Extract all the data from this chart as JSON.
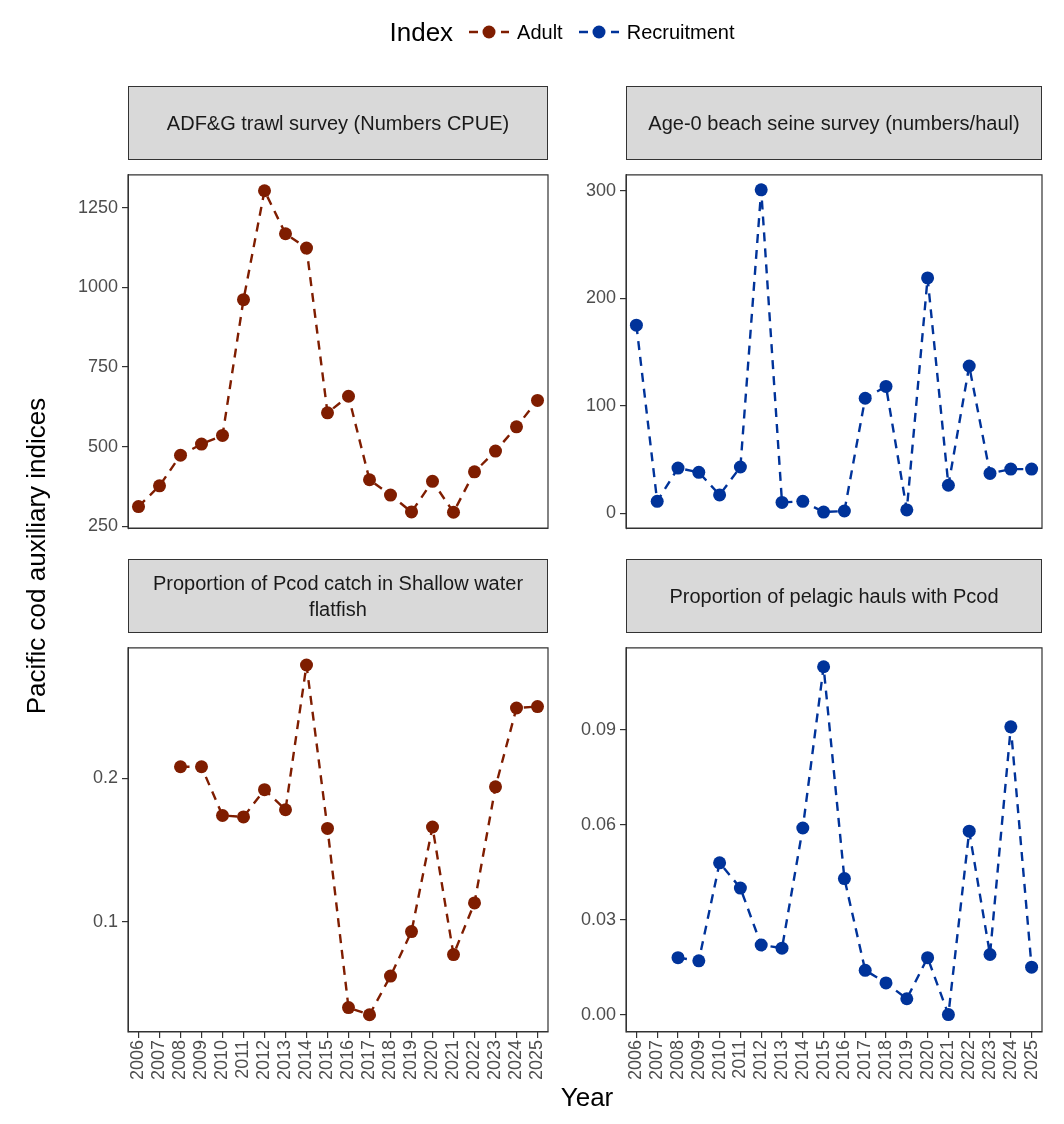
{
  "chart_data": [
    {
      "type": "line",
      "title": "ADF&G trawl survey (Numbers CPUE)",
      "ylabel": "Pacific cod auxiliary indices",
      "legend_title": "Index",
      "legend": "top",
      "marker": "circle",
      "line_style": "dashed",
      "grid": false,
      "tick_labels": "y",
      "categories": [
        "2006",
        "2007",
        "2008",
        "2009",
        "2010",
        "2011",
        "2012",
        "2013",
        "2014",
        "2015",
        "2016",
        "2017",
        "2018",
        "2019",
        "2020",
        "2021",
        "2022",
        "2023",
        "2024",
        "2025"
      ],
      "ylim": [
        244,
        1353
      ],
      "yticks": [
        250,
        500,
        750,
        1000,
        1250
      ],
      "series": [
        {
          "name": "Adult",
          "color": "#7f1d00",
          "values": [
            312,
            377,
            473,
            508,
            535,
            961,
            1303,
            1168,
            1123,
            606,
            658,
            396,
            348,
            295,
            391,
            294,
            421,
            486,
            562,
            645
          ]
        }
      ]
    },
    {
      "type": "line",
      "title": "Age-0 beach seine survey (numbers/haul)",
      "legend": "top",
      "marker": "circle",
      "line_style": "dashed",
      "grid": false,
      "tick_labels": "y",
      "categories": [
        "2006",
        "2007",
        "2008",
        "2009",
        "2010",
        "2011",
        "2012",
        "2013",
        "2014",
        "2015",
        "2016",
        "2017",
        "2018",
        "2019",
        "2020",
        "2021",
        "2022",
        "2023",
        "2024",
        "2025"
      ],
      "ylim": [
        -14,
        315
      ],
      "yticks": [
        0,
        100,
        200,
        300
      ],
      "series": [
        {
          "name": "Recruitment",
          "color": "#00339a",
          "values": [
            175,
            11,
            42,
            38,
            17,
            43,
            301,
            10,
            11,
            1,
            2,
            107,
            118,
            3,
            219,
            26,
            137,
            37,
            41,
            41
          ]
        }
      ]
    },
    {
      "type": "line",
      "title": "Proportion of Pcod catch in Shallow water flatfish",
      "xlabel": "Year",
      "legend": "top",
      "marker": "circle",
      "line_style": "dashed",
      "grid": false,
      "categories": [
        "2006",
        "2007",
        "2008",
        "2009",
        "2010",
        "2011",
        "2012",
        "2013",
        "2014",
        "2015",
        "2016",
        "2017",
        "2018",
        "2019",
        "2020",
        "2021",
        "2022",
        "2023",
        "2024",
        "2025"
      ],
      "ylim": [
        0.023,
        0.291
      ],
      "yticks": [
        0.1,
        0.2
      ],
      "series": [
        {
          "name": "Adult",
          "color": "#7f1d00",
          "values": [
            null,
            null,
            0.208,
            0.208,
            0.174,
            0.173,
            0.192,
            0.178,
            0.279,
            0.165,
            0.04,
            0.035,
            0.062,
            0.093,
            0.166,
            0.077,
            0.113,
            0.194,
            0.249,
            0.25
          ]
        }
      ]
    },
    {
      "type": "line",
      "title": "Proportion of pelagic hauls with Pcod",
      "legend": "top",
      "marker": "circle",
      "line_style": "dashed",
      "grid": false,
      "categories": [
        "2006",
        "2007",
        "2008",
        "2009",
        "2010",
        "2011",
        "2012",
        "2013",
        "2014",
        "2015",
        "2016",
        "2017",
        "2018",
        "2019",
        "2020",
        "2021",
        "2022",
        "2023",
        "2024",
        "2025"
      ],
      "ylim": [
        -0.0055,
        0.116
      ],
      "yticks": [
        {
          "value": 0,
          "label": "0.00"
        },
        0.03,
        0.06,
        0.09
      ],
      "series": [
        {
          "name": "Recruitment",
          "color": "#00339a",
          "values": [
            null,
            null,
            0.018,
            0.017,
            0.048,
            0.04,
            0.022,
            0.021,
            0.059,
            0.11,
            0.043,
            0.014,
            0.01,
            0.005,
            0.018,
            0.0,
            0.058,
            0.019,
            0.091,
            0.015
          ]
        }
      ]
    }
  ]
}
